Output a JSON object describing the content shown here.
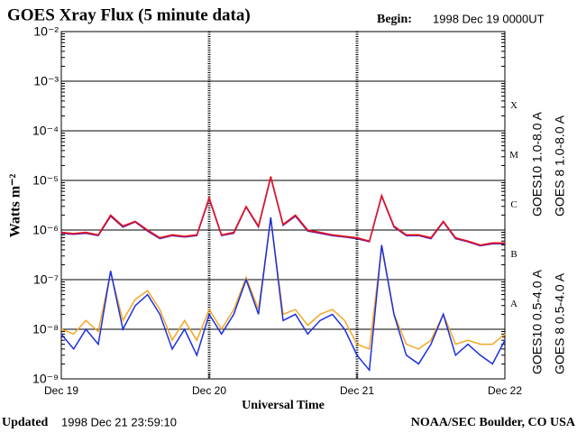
{
  "chart_data": {
    "type": "line",
    "title": "GOES Xray Flux (5 minute data)",
    "begin_label": "Begin:",
    "begin": "1998 Dec 19 0000UT",
    "ylabel": "Watts m⁻²",
    "xlabel": "Universal Time",
    "updated_label": "Updated",
    "updated": "1998 Dec 21 23:59:10",
    "credit": "NOAA/SEC Boulder, CO USA",
    "log_scale": true,
    "grid": true,
    "ylim": [
      1e-09,
      0.01
    ],
    "yticks": [
      {
        "value": 1e-09,
        "label": "10⁻⁹"
      },
      {
        "value": 1e-08,
        "label": "10⁻⁸"
      },
      {
        "value": 1e-07,
        "label": "10⁻⁷"
      },
      {
        "value": 1e-06,
        "label": "10⁻⁶"
      },
      {
        "value": 1e-05,
        "label": "10⁻⁵"
      },
      {
        "value": 0.0001,
        "label": "10⁻⁴"
      },
      {
        "value": 0.001,
        "label": "10⁻³"
      },
      {
        "value": 0.01,
        "label": "10⁻²"
      }
    ],
    "xlim": [
      0,
      72
    ],
    "xticks": [
      {
        "value": 0,
        "label": "Dec 19"
      },
      {
        "value": 24,
        "label": "Dec 20"
      },
      {
        "value": 48,
        "label": "Dec 21"
      },
      {
        "value": 72,
        "label": "Dec 22"
      }
    ],
    "flare_classes": [
      {
        "label": "A",
        "value": 1e-08
      },
      {
        "label": "B",
        "value": 1e-07
      },
      {
        "label": "C",
        "value": 1e-06
      },
      {
        "label": "M",
        "value": 1e-05
      },
      {
        "label": "X",
        "value": 0.0001
      }
    ],
    "x": [
      0,
      2,
      4,
      6,
      8,
      10,
      12,
      14,
      16,
      18,
      20,
      22,
      24,
      26,
      28,
      30,
      32,
      34,
      36,
      38,
      40,
      42,
      44,
      46,
      48,
      50,
      52,
      54,
      56,
      58,
      60,
      62,
      64,
      66,
      68,
      70,
      72
    ],
    "series": [
      {
        "name": "GOES10 1.0-8.0 A",
        "color": "#6a1b9a",
        "legend_column": 0,
        "values": [
          8.6e-07,
          8.2e-07,
          8.6e-07,
          7.7e-07,
          1.9e-06,
          1.15e-06,
          1.45e-06,
          9.5e-07,
          6.7e-07,
          7.7e-07,
          7.2e-07,
          7.7e-07,
          4.3e-06,
          7.7e-07,
          8.6e-07,
          2.9e-06,
          1.15e-06,
          1.15e-05,
          1.25e-06,
          1.9e-06,
          9.5e-07,
          8.6e-07,
          7.7e-07,
          7.2e-07,
          6.7e-07,
          5.8e-07,
          4.8e-06,
          1.15e-06,
          7.7e-07,
          7.7e-07,
          6.7e-07,
          1.45e-06,
          6.7e-07,
          5.8e-07,
          4.8e-07,
          5.3e-07,
          5.3e-07
        ]
      },
      {
        "name": "GOES 8 1.0-8.0 A",
        "color": "#e8141e",
        "legend_column": 1,
        "values": [
          9e-07,
          8.5e-07,
          9e-07,
          8e-07,
          2e-06,
          1.2e-06,
          1.5e-06,
          1e-06,
          7e-07,
          8e-07,
          7.5e-07,
          8e-07,
          4.5e-06,
          8e-07,
          9e-07,
          3e-06,
          1.2e-06,
          1.2e-05,
          1.3e-06,
          2e-06,
          1e-06,
          9e-07,
          8e-07,
          7.5e-07,
          7e-07,
          6e-07,
          5e-06,
          1.2e-06,
          8e-07,
          8e-07,
          7e-07,
          1.5e-06,
          7e-07,
          6e-07,
          5e-07,
          5.5e-07,
          5.5e-07
        ]
      },
      {
        "name": "GOES10 0.5-4.0 A",
        "color": "#f5a623",
        "legend_column": 0,
        "values": [
          1e-08,
          8e-09,
          1.5e-08,
          9e-09,
          1.4e-07,
          1.5e-08,
          4e-08,
          6e-08,
          2.5e-08,
          6e-09,
          1.5e-08,
          6e-09,
          2.5e-08,
          1e-08,
          2.5e-08,
          1.1e-07,
          2.5e-08,
          1.7e-06,
          2e-08,
          2.5e-08,
          1.2e-08,
          2e-08,
          2.5e-08,
          1.5e-08,
          5e-09,
          4e-09,
          4.5e-07,
          2e-08,
          5e-09,
          4e-09,
          6e-09,
          2e-08,
          5e-09,
          6e-09,
          5e-09,
          5e-09,
          8e-09
        ]
      },
      {
        "name": "GOES 8 0.5-4.0 A",
        "color": "#1a2fe0",
        "legend_column": 1,
        "values": [
          8e-09,
          4e-09,
          1e-08,
          5e-09,
          1.5e-07,
          1e-08,
          3e-08,
          5e-08,
          2e-08,
          4e-09,
          1e-08,
          3e-09,
          2e-08,
          8e-09,
          2e-08,
          1e-07,
          2e-08,
          1.8e-06,
          1.5e-08,
          2e-08,
          8e-09,
          1.5e-08,
          2e-08,
          1e-08,
          3e-09,
          1.5e-09,
          5e-07,
          2e-08,
          3e-09,
          2e-09,
          5e-09,
          2e-08,
          3e-09,
          5e-09,
          3e-09,
          2e-09,
          6e-09
        ]
      }
    ]
  }
}
